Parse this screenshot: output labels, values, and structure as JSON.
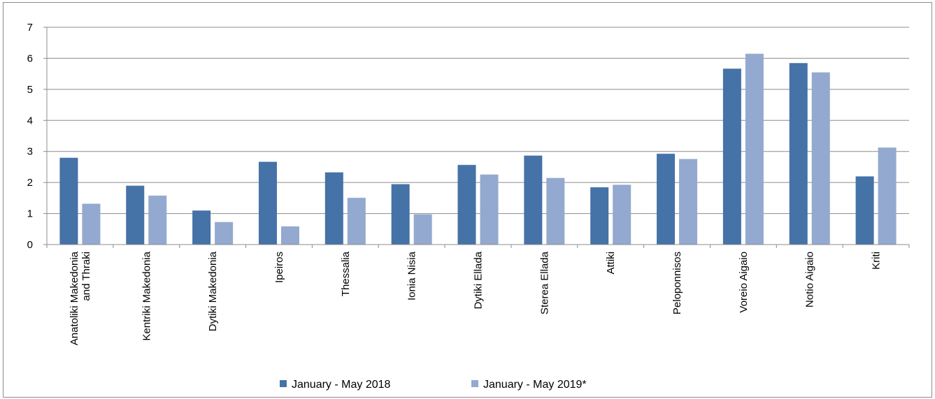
{
  "chart_data": {
    "type": "bar",
    "title": "",
    "xlabel": "",
    "ylabel": "",
    "ylim": [
      0,
      7
    ],
    "yticks": [
      0,
      1,
      2,
      3,
      4,
      5,
      6,
      7
    ],
    "grid": true,
    "legend_position": "bottom",
    "categories": [
      [
        "Anatoliki Makedonia",
        "and Thraki"
      ],
      [
        "Kentriki Makedonia"
      ],
      [
        "Dytiki Makedonia"
      ],
      [
        "Ipeiros"
      ],
      [
        "Thessalia"
      ],
      [
        "Ionia Nisia"
      ],
      [
        "Dytiki Ellada"
      ],
      [
        "Sterea Ellada"
      ],
      [
        "Attiki"
      ],
      [
        "Peloponnisos"
      ],
      [
        "Voreio Aigaio"
      ],
      [
        "Notio Aigaio"
      ],
      [
        "Kriti"
      ]
    ],
    "series": [
      {
        "name": "January - May 2018",
        "color": "#4572a7",
        "values": [
          2.8,
          1.9,
          1.1,
          2.67,
          2.33,
          1.95,
          2.57,
          2.87,
          1.85,
          2.93,
          5.67,
          5.85,
          2.2
        ]
      },
      {
        "name": "January - May 2019*",
        "color": "#93a9cf",
        "values": [
          1.32,
          1.58,
          0.73,
          0.59,
          1.51,
          0.98,
          2.26,
          2.15,
          1.93,
          2.76,
          6.15,
          5.55,
          3.13
        ]
      }
    ]
  }
}
